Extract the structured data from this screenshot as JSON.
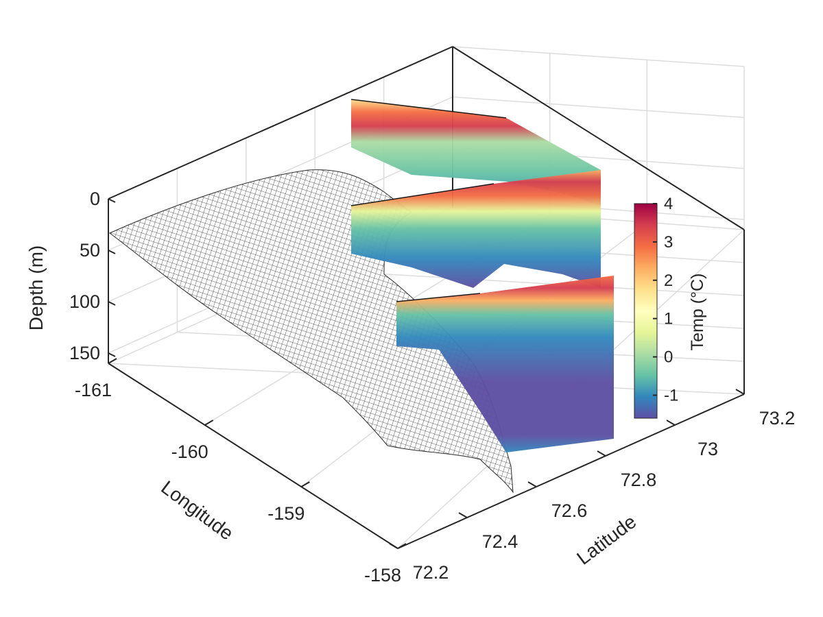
{
  "chart_data": {
    "type": "3d-surface-with-sections",
    "xlabel": "Longitude",
    "ylabel": "Latitude",
    "zlabel": "Depth (m)",
    "colorbar_label": "Temp (°C)",
    "x_ticks": [
      "-161",
      "-160",
      "-159",
      "-158"
    ],
    "y_ticks": [
      "72.2",
      "72.4",
      "72.6",
      "72.8",
      "73",
      "73.2"
    ],
    "z_ticks": [
      "0",
      "50",
      "100",
      "150"
    ],
    "colorbar_ticks": [
      "4",
      "3",
      "2",
      "1",
      "0",
      "-1"
    ],
    "xlim": [
      -161,
      -158
    ],
    "ylim": [
      72.2,
      73.2
    ],
    "zlim": [
      0,
      160
    ],
    "z_reversed": true,
    "clim": [
      -1.6,
      4
    ],
    "colormap": "spectral-reversed",
    "grid": true,
    "colors": {
      "mesh": "#2a2a2a",
      "cold": "#5e4fa2",
      "warm": "#9e0142"
    },
    "sections": [
      {
        "name": "",
        "depth_max": 60
      },
      {
        "name": "",
        "depth_max": 95
      },
      {
        "name": "",
        "depth_max": 160
      }
    ]
  }
}
